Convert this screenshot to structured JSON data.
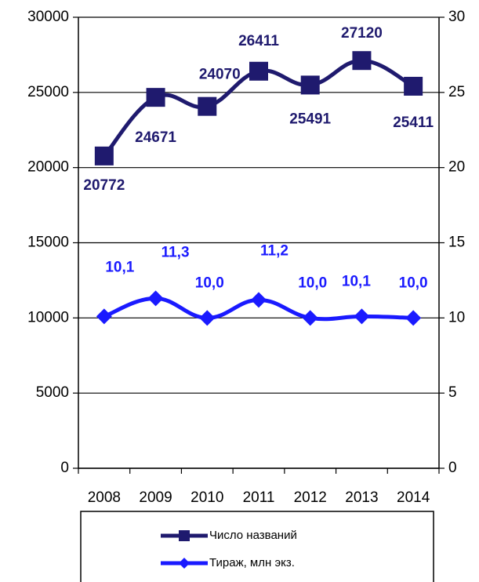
{
  "chart_data": {
    "type": "line",
    "categories": [
      "2008",
      "2009",
      "2010",
      "2011",
      "2012",
      "2013",
      "2014"
    ],
    "series": [
      {
        "name": "Число названий",
        "color": "#1f1a6e",
        "marker": "square",
        "values": [
          20772,
          24671,
          24070,
          26411,
          25491,
          27120,
          25411
        ]
      },
      {
        "name": "Тираж, млн экз.",
        "color": "#1a1aff",
        "marker": "diamond",
        "axis": "y2",
        "values": [
          10.1,
          11.3,
          10.0,
          11.2,
          10.0,
          10.1,
          10.0
        ],
        "value_labels": [
          "10,1",
          "11,3",
          "10,0",
          "11,2",
          "10,0",
          "10,1",
          "10,0"
        ]
      }
    ],
    "ylim": [
      0,
      30000
    ],
    "yticks": [
      0,
      5000,
      10000,
      15000,
      20000,
      25000,
      30000
    ],
    "y2lim": [
      0,
      30
    ],
    "y2ticks": [
      0,
      5,
      10,
      15,
      20,
      25,
      30
    ],
    "grid": true,
    "legend": "bottom"
  }
}
